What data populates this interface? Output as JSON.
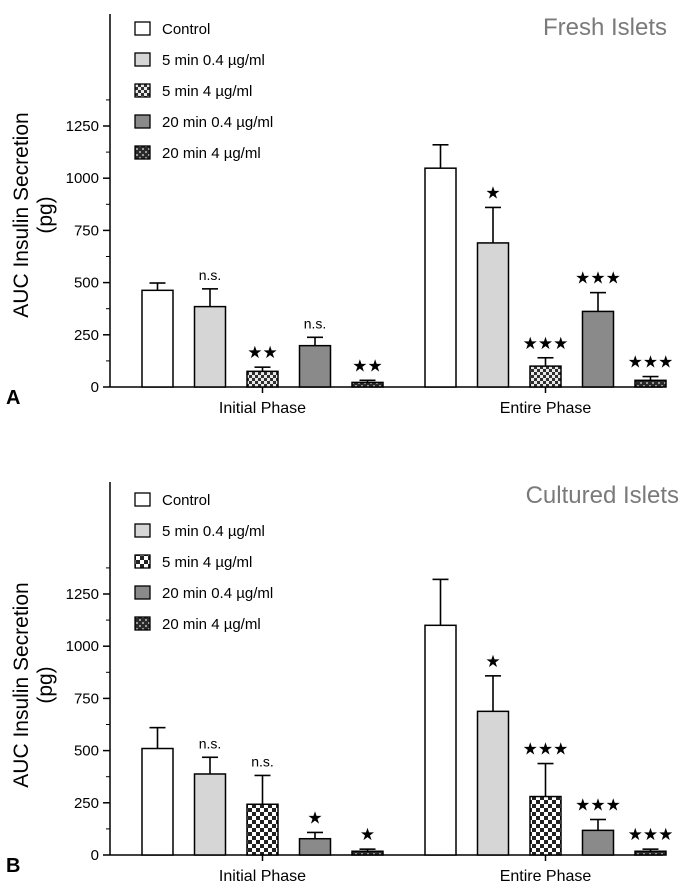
{
  "chart_data": [
    {
      "panel_label": "A",
      "title": "Fresh Islets",
      "type": "bar",
      "ylabel_line1": "AUC Insulin Secretion",
      "ylabel_line2": "(pg)",
      "ylim": [
        0,
        1450
      ],
      "yticks": [
        "0",
        "250",
        "500",
        "750",
        "1000",
        "1250"
      ],
      "minor_ticks": true,
      "legend_placement": "top-left",
      "categories": [
        "Initial Phase",
        "Entire Phase"
      ],
      "series": [
        {
          "name": "Control",
          "pattern": "white",
          "values": [
            463,
            1048
          ],
          "errors": [
            35,
            112
          ],
          "significance": [
            "",
            ""
          ]
        },
        {
          "name": "5 min 0.4 µg/ml",
          "pattern": "light-gray",
          "values": [
            385,
            690
          ],
          "errors": [
            85,
            170
          ],
          "significance": [
            "n.s.",
            "★"
          ]
        },
        {
          "name": "5 min 4 µg/ml",
          "pattern": "light-check",
          "values": [
            75,
            100
          ],
          "errors": [
            20,
            40
          ],
          "significance": [
            "★★",
            "★★★"
          ]
        },
        {
          "name": "20 min 0.4 µg/ml",
          "pattern": "dark-gray",
          "values": [
            198,
            362
          ],
          "errors": [
            40,
            90
          ],
          "significance": [
            "n.s.",
            "★★★"
          ]
        },
        {
          "name": "20 min 4 µg/ml",
          "pattern": "dark-check",
          "values": [
            22,
            32
          ],
          "errors": [
            10,
            18
          ],
          "significance": [
            "★★",
            "★★★"
          ]
        }
      ]
    },
    {
      "panel_label": "B",
      "title": "Cultured Islets",
      "type": "bar",
      "ylabel_line1": "AUC Insulin Secretion",
      "ylabel_line2": "(pg)",
      "ylim": [
        0,
        1450
      ],
      "yticks": [
        "0",
        "250",
        "500",
        "750",
        "1000",
        "1250"
      ],
      "minor_ticks": true,
      "legend_placement": "top-left",
      "categories": [
        "Initial Phase",
        "Entire Phase"
      ],
      "series": [
        {
          "name": "Control",
          "pattern": "white",
          "values": [
            510,
            1100
          ],
          "errors": [
            100,
            220
          ],
          "significance": [
            "",
            ""
          ]
        },
        {
          "name": "5 min 0.4 µg/ml",
          "pattern": "light-gray",
          "values": [
            388,
            688
          ],
          "errors": [
            80,
            170
          ],
          "significance": [
            "n.s.",
            "★"
          ]
        },
        {
          "name": "5 min 4 µg/ml",
          "pattern": "checker",
          "values": [
            243,
            280
          ],
          "errors": [
            138,
            158
          ],
          "significance": [
            "n.s.",
            "★★★"
          ]
        },
        {
          "name": "20 min 0.4 µg/ml",
          "pattern": "dark-gray",
          "values": [
            78,
            118
          ],
          "errors": [
            30,
            52
          ],
          "significance": [
            "★",
            "★★★"
          ]
        },
        {
          "name": "20 min 4 µg/ml",
          "pattern": "dark-check",
          "values": [
            18,
            18
          ],
          "errors": [
            10,
            10
          ],
          "significance": [
            "★",
            "★★★"
          ]
        }
      ]
    }
  ]
}
